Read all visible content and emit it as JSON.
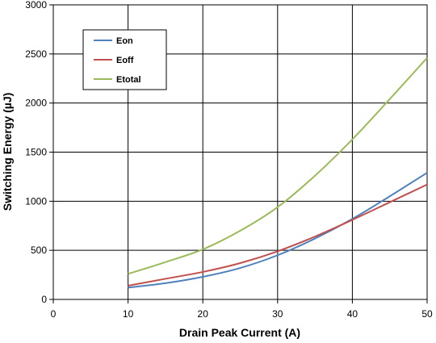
{
  "chart_data": {
    "type": "line",
    "title": "",
    "xlabel": "Drain  Peak Current (A)",
    "ylabel": "Switching Energy (µJ)",
    "xlim": [
      0,
      50
    ],
    "ylim": [
      0,
      3000
    ],
    "xticks": [
      0,
      10,
      20,
      30,
      40,
      50
    ],
    "yticks": [
      0,
      500,
      1000,
      1500,
      2000,
      2500,
      3000
    ],
    "grid": true,
    "legend_position": "top-left",
    "x": [
      10,
      15,
      20,
      25,
      30,
      35,
      40,
      45,
      50
    ],
    "series": [
      {
        "name": "Eon",
        "color": "#4f81bd",
        "values": [
          120,
          165,
          230,
          320,
          450,
          620,
          820,
          1050,
          1290
        ]
      },
      {
        "name": "Eoff",
        "color": "#c0504d",
        "values": [
          140,
          210,
          280,
          370,
          490,
          640,
          810,
          990,
          1170
        ]
      },
      {
        "name": "Etotal",
        "color": "#9bbb59",
        "values": [
          260,
          380,
          510,
          700,
          940,
          1260,
          1630,
          2040,
          2460
        ]
      }
    ]
  }
}
